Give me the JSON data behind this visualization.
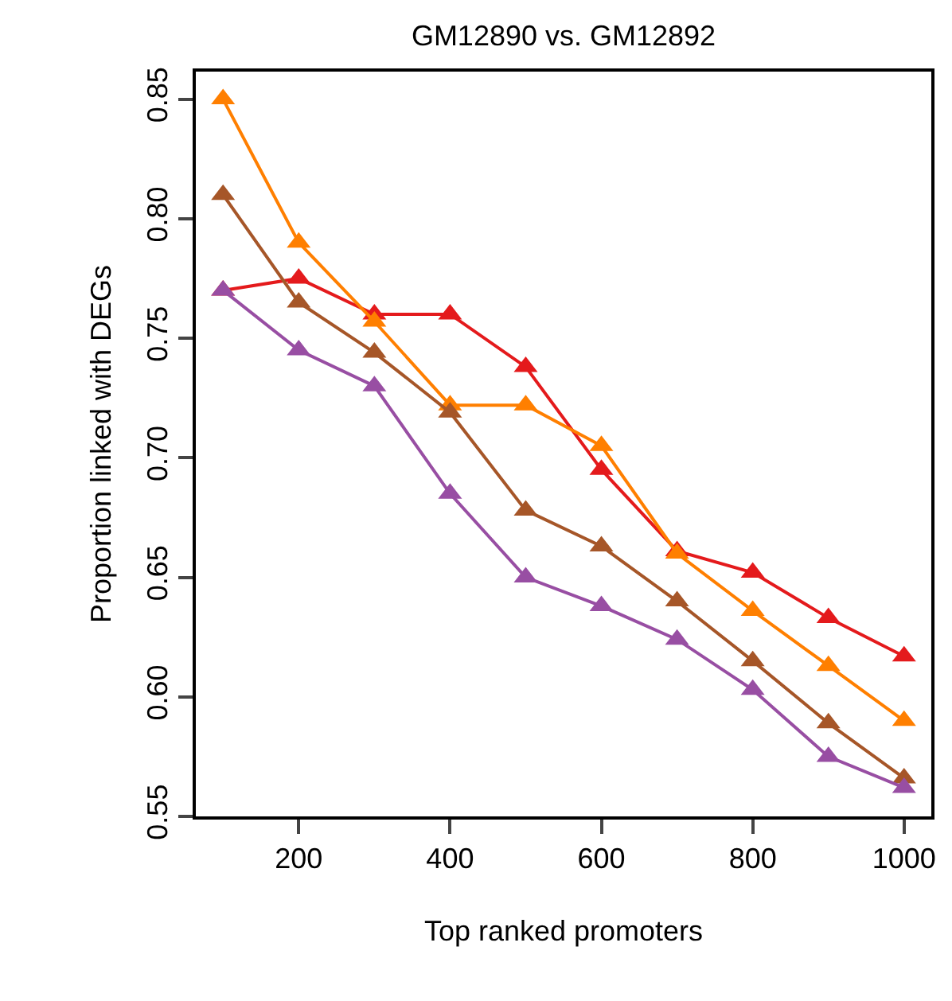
{
  "chart_data": {
    "type": "line",
    "title": "GM12890 vs. GM12892",
    "xlabel": "Top ranked promoters",
    "ylabel": "Proportion linked with DEGs",
    "x": [
      100,
      200,
      300,
      400,
      500,
      600,
      700,
      800,
      900,
      1000
    ],
    "series": [
      {
        "color": "#e41a1c",
        "values": [
          0.77,
          0.775,
          0.76,
          0.76,
          0.738,
          0.695,
          0.661,
          0.652,
          0.633,
          0.617
        ]
      },
      {
        "color": "#ff7f00",
        "values": [
          0.85,
          0.79,
          0.757,
          0.722,
          0.722,
          0.705,
          0.66,
          0.636,
          0.613,
          0.59
        ]
      },
      {
        "color": "#a65628",
        "values": [
          0.81,
          0.765,
          0.744,
          0.719,
          0.678,
          0.663,
          0.64,
          0.615,
          0.589,
          0.566
        ]
      },
      {
        "color": "#984ea3",
        "values": [
          0.77,
          0.745,
          0.73,
          0.685,
          0.65,
          0.638,
          0.624,
          0.603,
          0.575,
          0.562
        ]
      }
    ],
    "xlim": [
      64,
      1036
    ],
    "ylim": [
      0.55,
      0.8615
    ],
    "xticks": [
      200,
      400,
      600,
      800,
      1000
    ],
    "yticks": [
      {
        "value": 0.55,
        "label": "0.55"
      },
      {
        "value": 0.6,
        "label": "0.60"
      },
      {
        "value": 0.65,
        "label": "0.65"
      },
      {
        "value": 0.7,
        "label": "0.70"
      },
      {
        "value": 0.75,
        "label": "0.75"
      },
      {
        "value": 0.8,
        "label": "0.80"
      },
      {
        "value": 0.85,
        "label": "0.85"
      }
    ],
    "marker": "triangle",
    "line_style": "solid",
    "grid": false
  }
}
